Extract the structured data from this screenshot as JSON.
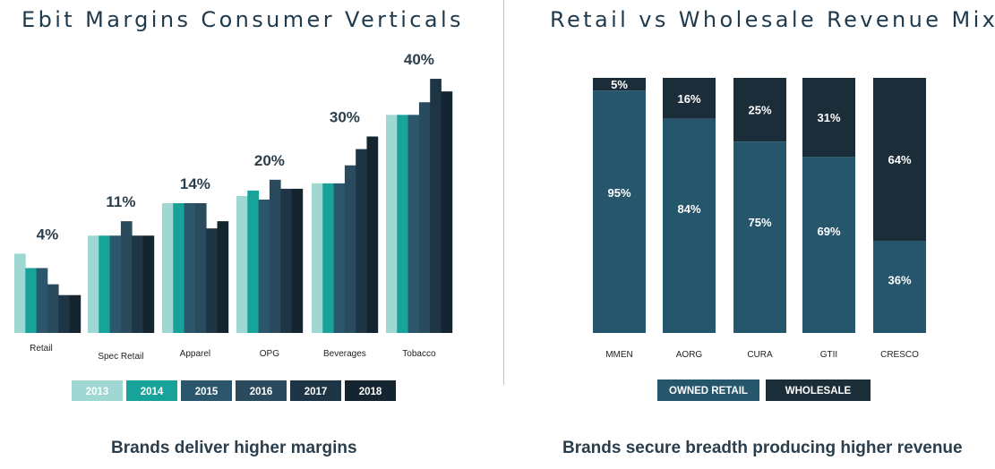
{
  "chart_data": [
    {
      "type": "bar",
      "title": "Ebit Margins Consumer Verticals",
      "caption": "Brands deliver higher margins",
      "categories": [
        "Retail",
        "Spec Retail",
        "Apparel",
        "OPG",
        "Beverages",
        "Tobacco"
      ],
      "group_labels": [
        "4%",
        "11%",
        "14%",
        "20%",
        "30%",
        "40%"
      ],
      "series": [
        {
          "name": "2013",
          "color": "#9fd8d2",
          "values": [
            4.4,
            5.4,
            7.2,
            7.6,
            8.3,
            12.1
          ]
        },
        {
          "name": "2014",
          "color": "#17a39a",
          "values": [
            3.6,
            5.4,
            7.2,
            7.9,
            8.3,
            12.1
          ]
        },
        {
          "name": "2015",
          "color": "#2b566b",
          "values": [
            3.6,
            5.4,
            7.2,
            7.4,
            8.3,
            12.1
          ]
        },
        {
          "name": "2016",
          "color": "#2a4a5d",
          "values": [
            2.7,
            6.2,
            7.2,
            8.5,
            9.3,
            12.8
          ]
        },
        {
          "name": "2017",
          "color": "#1d3544",
          "values": [
            2.1,
            5.4,
            5.8,
            8.0,
            10.2,
            14.1
          ]
        },
        {
          "name": "2018",
          "color": "#15252f",
          "values": [
            2.1,
            5.4,
            6.2,
            8.0,
            10.9,
            13.4
          ]
        }
      ],
      "ylim": [
        0,
        14.5
      ],
      "grid": false,
      "legend_position": "bottom"
    },
    {
      "type": "bar",
      "stacked": true,
      "percent": true,
      "title": "Retail vs Wholesale Revenue Mix",
      "caption": "Brands secure breadth producing higher revenue",
      "categories": [
        "MMEN",
        "AORG",
        "CURA",
        "GTII",
        "CRESCO"
      ],
      "series": [
        {
          "name": "OWNED RETAIL",
          "color": "#25566c",
          "values": [
            95,
            84,
            75,
            69,
            36
          ],
          "labels": [
            "95%",
            "84%",
            "75%",
            "69%",
            "36%"
          ]
        },
        {
          "name": "WHOLESALE",
          "color": "#1b2d38",
          "values": [
            5,
            16,
            25,
            31,
            64
          ],
          "labels": [
            "5%",
            "16%",
            "25%",
            "31%",
            "64%"
          ]
        }
      ],
      "ylim": [
        0,
        100
      ],
      "grid": false,
      "legend_position": "bottom"
    }
  ]
}
